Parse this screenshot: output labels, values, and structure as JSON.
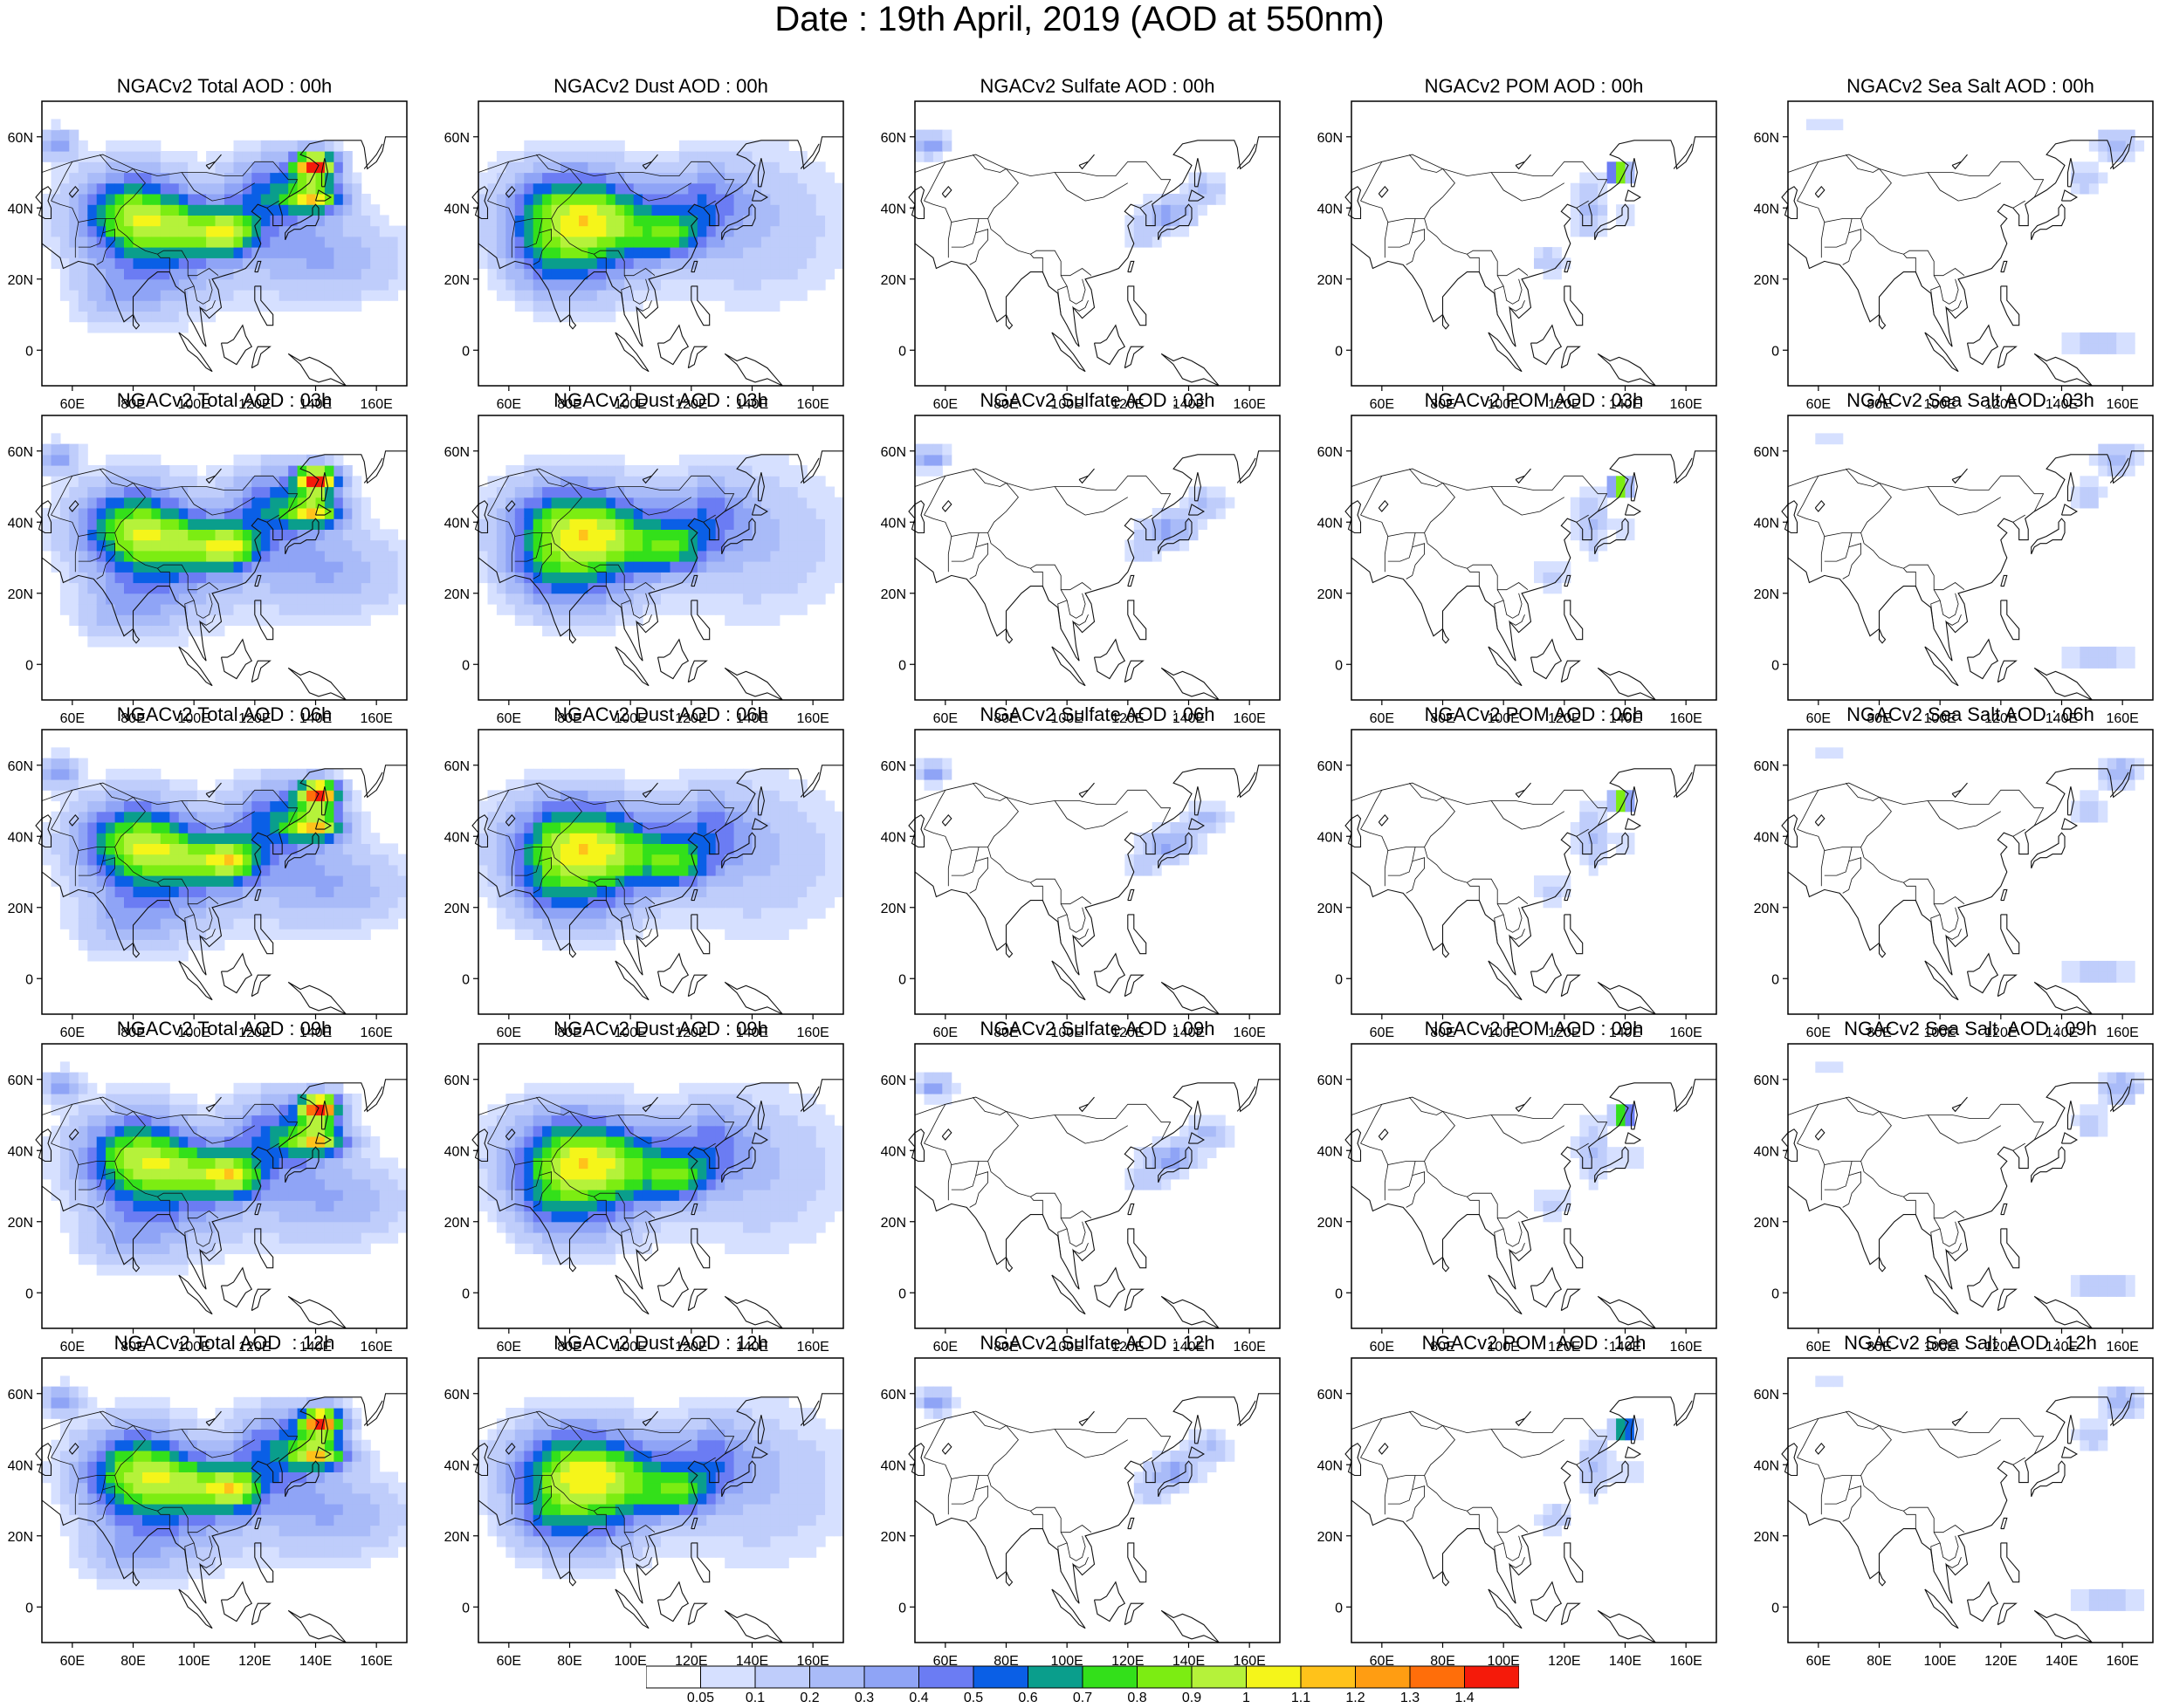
{
  "title": "Date : 19th April, 2019 (AOD at 550nm)",
  "axes": {
    "x_ticks": [
      "60E",
      "80E",
      "100E",
      "120E",
      "140E",
      "160E"
    ],
    "y_ticks": [
      "60N",
      "40N",
      "20N",
      "0"
    ]
  },
  "rows": [
    {
      "panels": [
        "NGACv2 Total AOD : 00h",
        "NGACv2 Dust AOD : 00h",
        "NGACv2 Sulfate AOD : 00h",
        "NGACv2 POM AOD : 00h",
        "NGACv2 Sea Salt AOD : 00h"
      ]
    },
    {
      "panels": [
        "NGACv2 Total AOD : 03h",
        "NGACv2 Dust AOD : 03h",
        "NGACv2 Sulfate AOD : 03h",
        "NGACv2 POM AOD : 03h",
        "NGACv2 Sea Salt AOD : 03h"
      ]
    },
    {
      "panels": [
        "NGACv2 Total AOD : 06h",
        "NGACv2 Dust AOD : 06h",
        "NGACv2 Sulfate AOD : 06h",
        "NGACv2 POM AOD : 06h",
        "NGACv2 Sea Salt AOD : 06h"
      ]
    },
    {
      "panels": [
        "NGACv2 Total AOD : 09h",
        "NGACv2 Dust AOD : 09h",
        "NGACv2 Sulfate AOD : 09h",
        "NGACv2 POM AOD : 09h",
        "NGACv2 Sea Salt  AOD : 09h"
      ]
    },
    {
      "panels": [
        "NGACv2 Total AOD  : 12h",
        "NGACv2 Dust AOD : 12h",
        "NGACv2 Sulfate AOD : 12h",
        "NGACv2 POM  AOD : 12h",
        "NGACv2 Sea Salt  AOD : 12h"
      ]
    }
  ],
  "colorbar": {
    "labels": [
      "0.05",
      "0.1",
      "0.2",
      "0.3",
      "0.4",
      "0.5",
      "0.6",
      "0.7",
      "0.8",
      "0.9",
      "1",
      "1.1",
      "1.2",
      "1.3",
      "1.4"
    ],
    "colors": [
      "#ffffff",
      "#d6e0ff",
      "#bfcdfb",
      "#a9bbf8",
      "#8fa4f6",
      "#6b7cf3",
      "#0a5fe6",
      "#0a9e8c",
      "#33e01a",
      "#7ced12",
      "#b5f23a",
      "#f5f51a",
      "#ffc21a",
      "#ff9d12",
      "#ff6e0a",
      "#f51a0a"
    ]
  }
}
